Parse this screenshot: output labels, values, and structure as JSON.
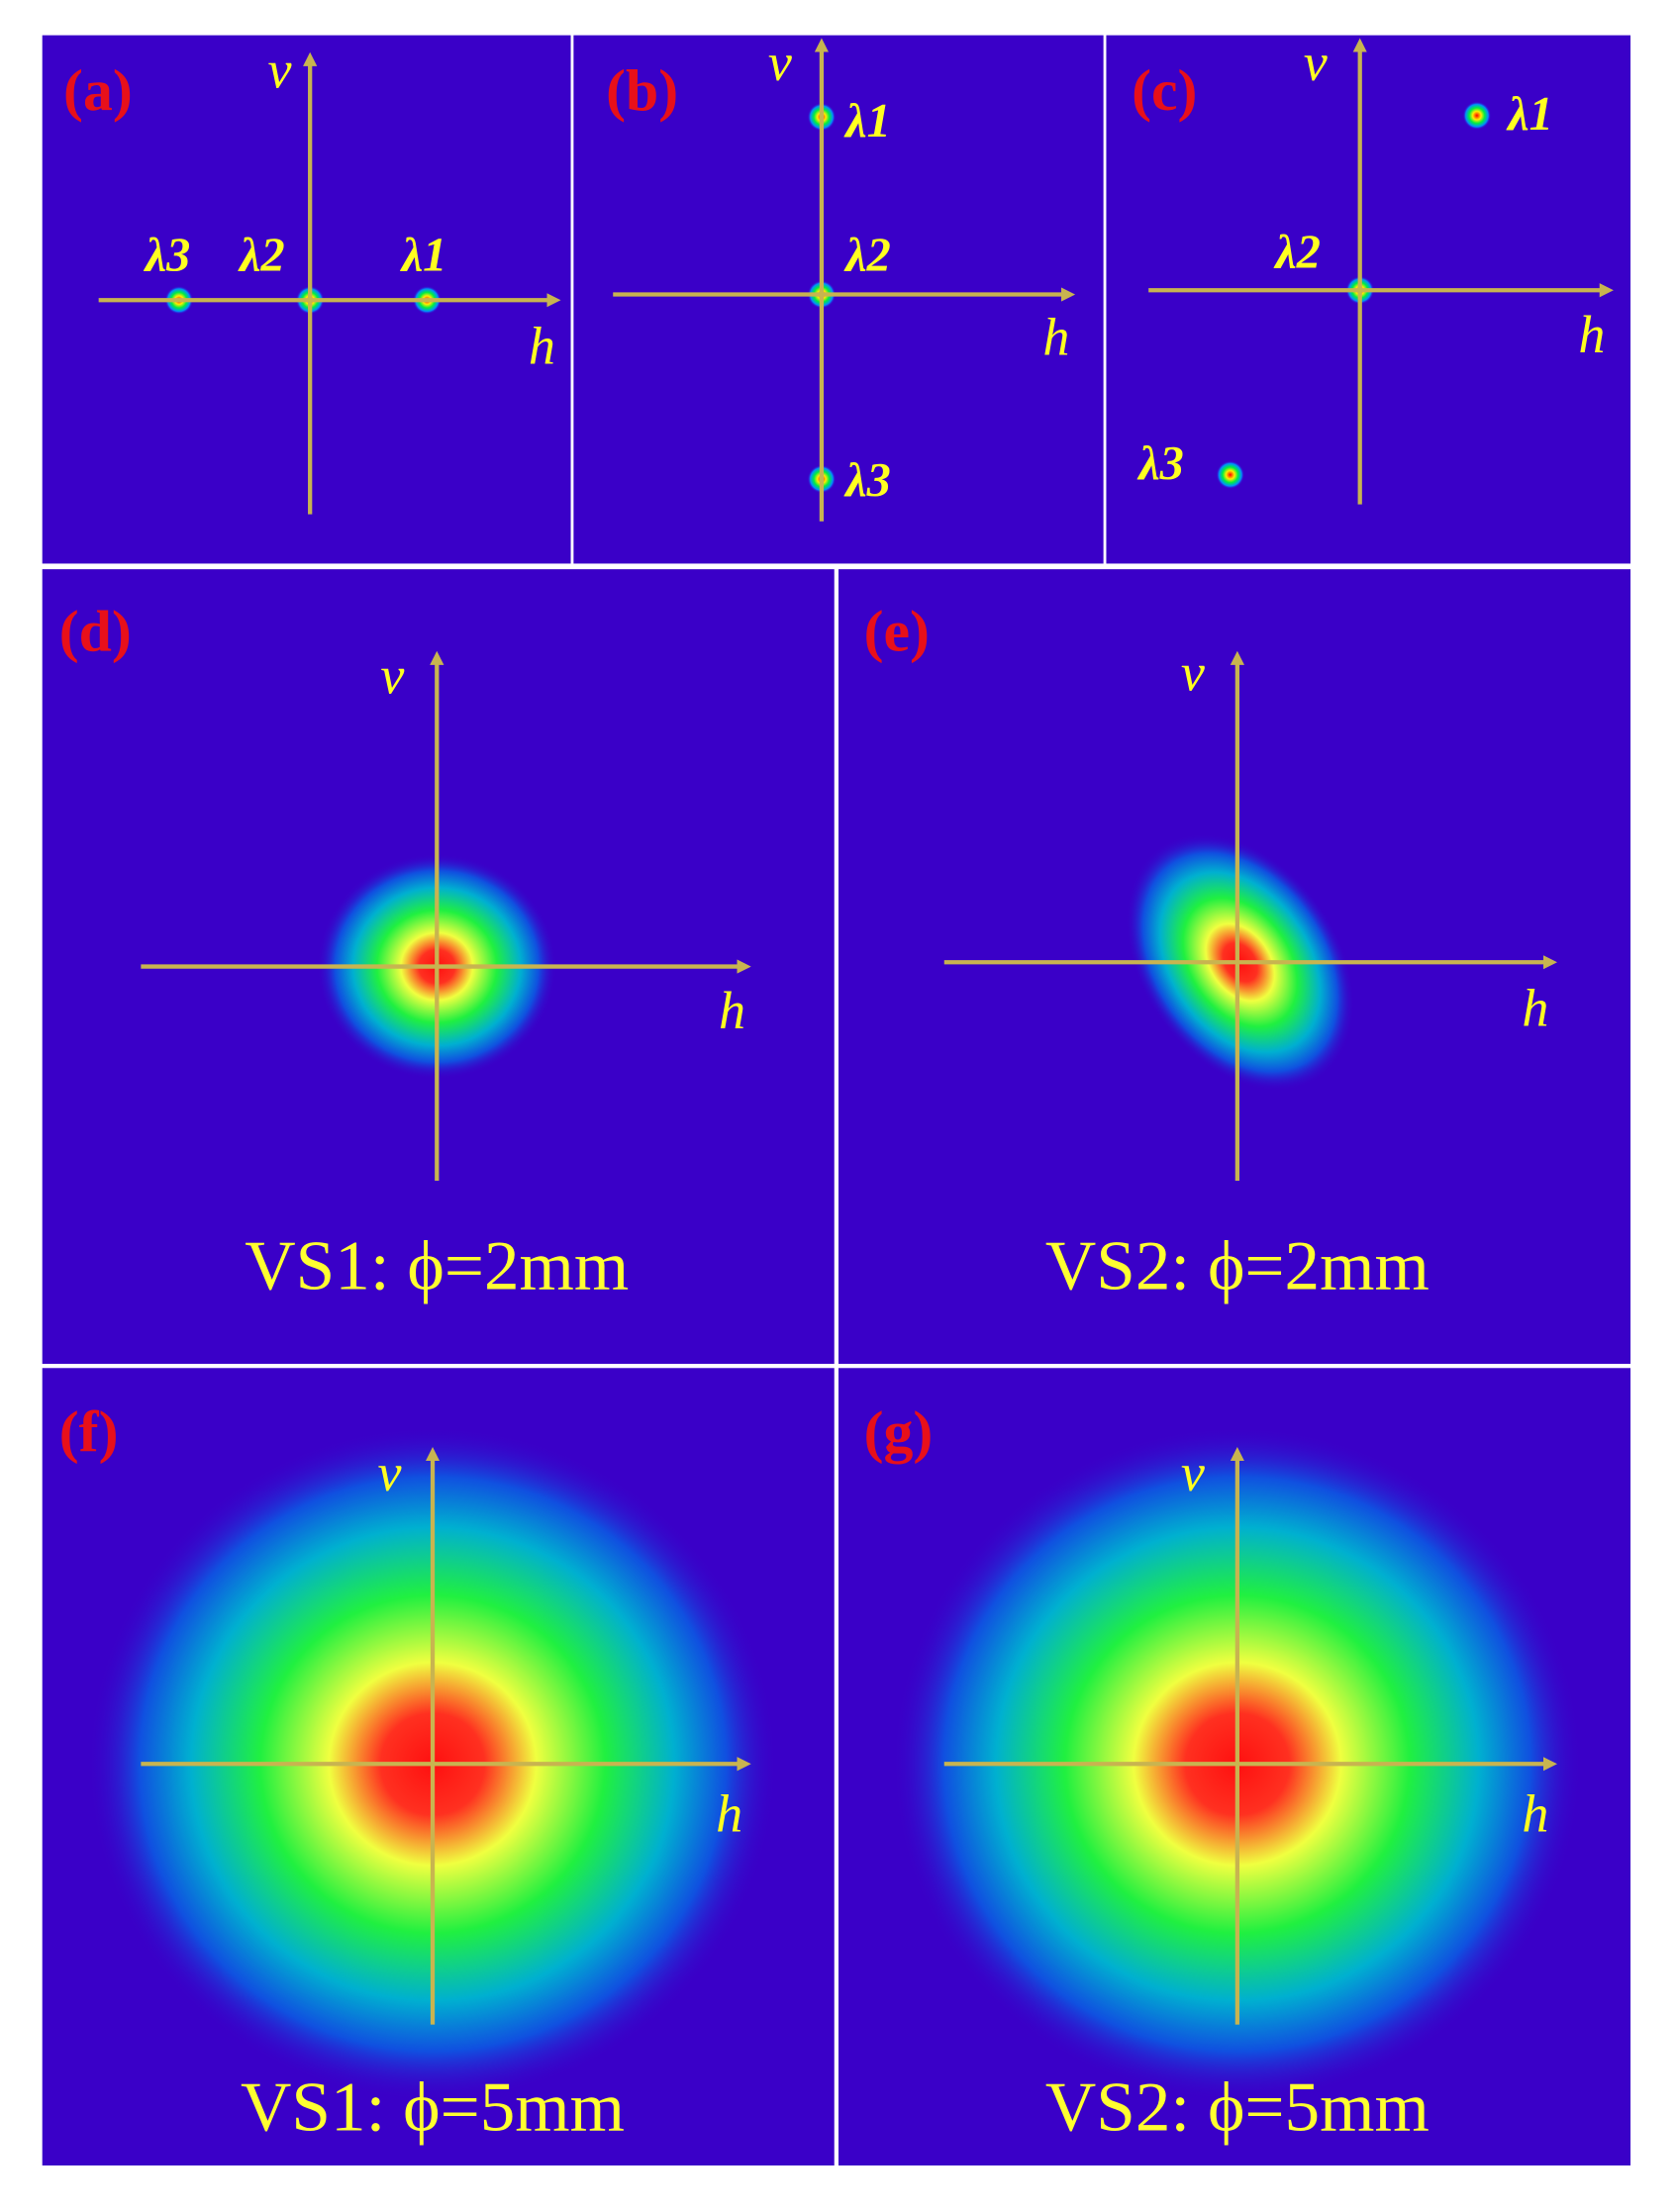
{
  "panels": [
    {
      "label": "(a)",
      "v": "v",
      "h": "h",
      "spots": [
        "λ3",
        "λ2",
        "λ1"
      ]
    },
    {
      "label": "(b)",
      "v": "v",
      "h": "h",
      "spots": [
        "λ1",
        "λ2",
        "λ3"
      ]
    },
    {
      "label": "(c)",
      "v": "v",
      "h": "h",
      "spots": [
        "λ1",
        "λ2",
        "λ3"
      ]
    },
    {
      "label": "(d)",
      "v": "v",
      "h": "h",
      "caption": "VS1: ϕ=2mm"
    },
    {
      "label": "(e)",
      "v": "v",
      "h": "h",
      "caption": "VS2: ϕ=2mm"
    },
    {
      "label": "(f)",
      "v": "v",
      "h": "h",
      "caption": "VS1: ϕ=5mm"
    },
    {
      "label": "(g)",
      "v": "v",
      "h": "h",
      "caption": "VS2: ϕ=5mm"
    }
  ]
}
